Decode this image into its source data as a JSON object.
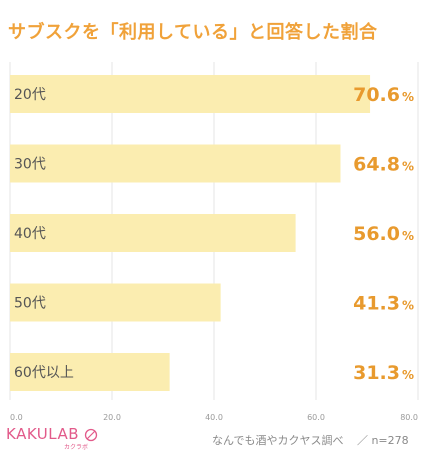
{
  "title": "サブスクを「利用している」と回答した割合",
  "chart_data": {
    "type": "bar",
    "orientation": "horizontal",
    "categories": [
      "20代",
      "30代",
      "40代",
      "50代",
      "60代以上"
    ],
    "values": [
      70.6,
      64.8,
      56.0,
      41.3,
      31.3
    ],
    "value_labels": [
      "70.6",
      "64.8",
      "56.0",
      "41.3",
      "31.3"
    ],
    "unit": "%",
    "xlim": [
      0,
      80
    ],
    "xticks": [
      "0.0",
      "20.0",
      "40.0",
      "60.0",
      "80.0"
    ],
    "bar_color": "#fbedb0",
    "value_color": "#e89a2e",
    "title_color": "#f0a23a"
  },
  "footer": {
    "logo_text": "KAKULAB",
    "logo_sub": "カクラボ",
    "source": "なんでも酒やカクヤス調べ",
    "separator": "／",
    "sample": "n=278"
  }
}
